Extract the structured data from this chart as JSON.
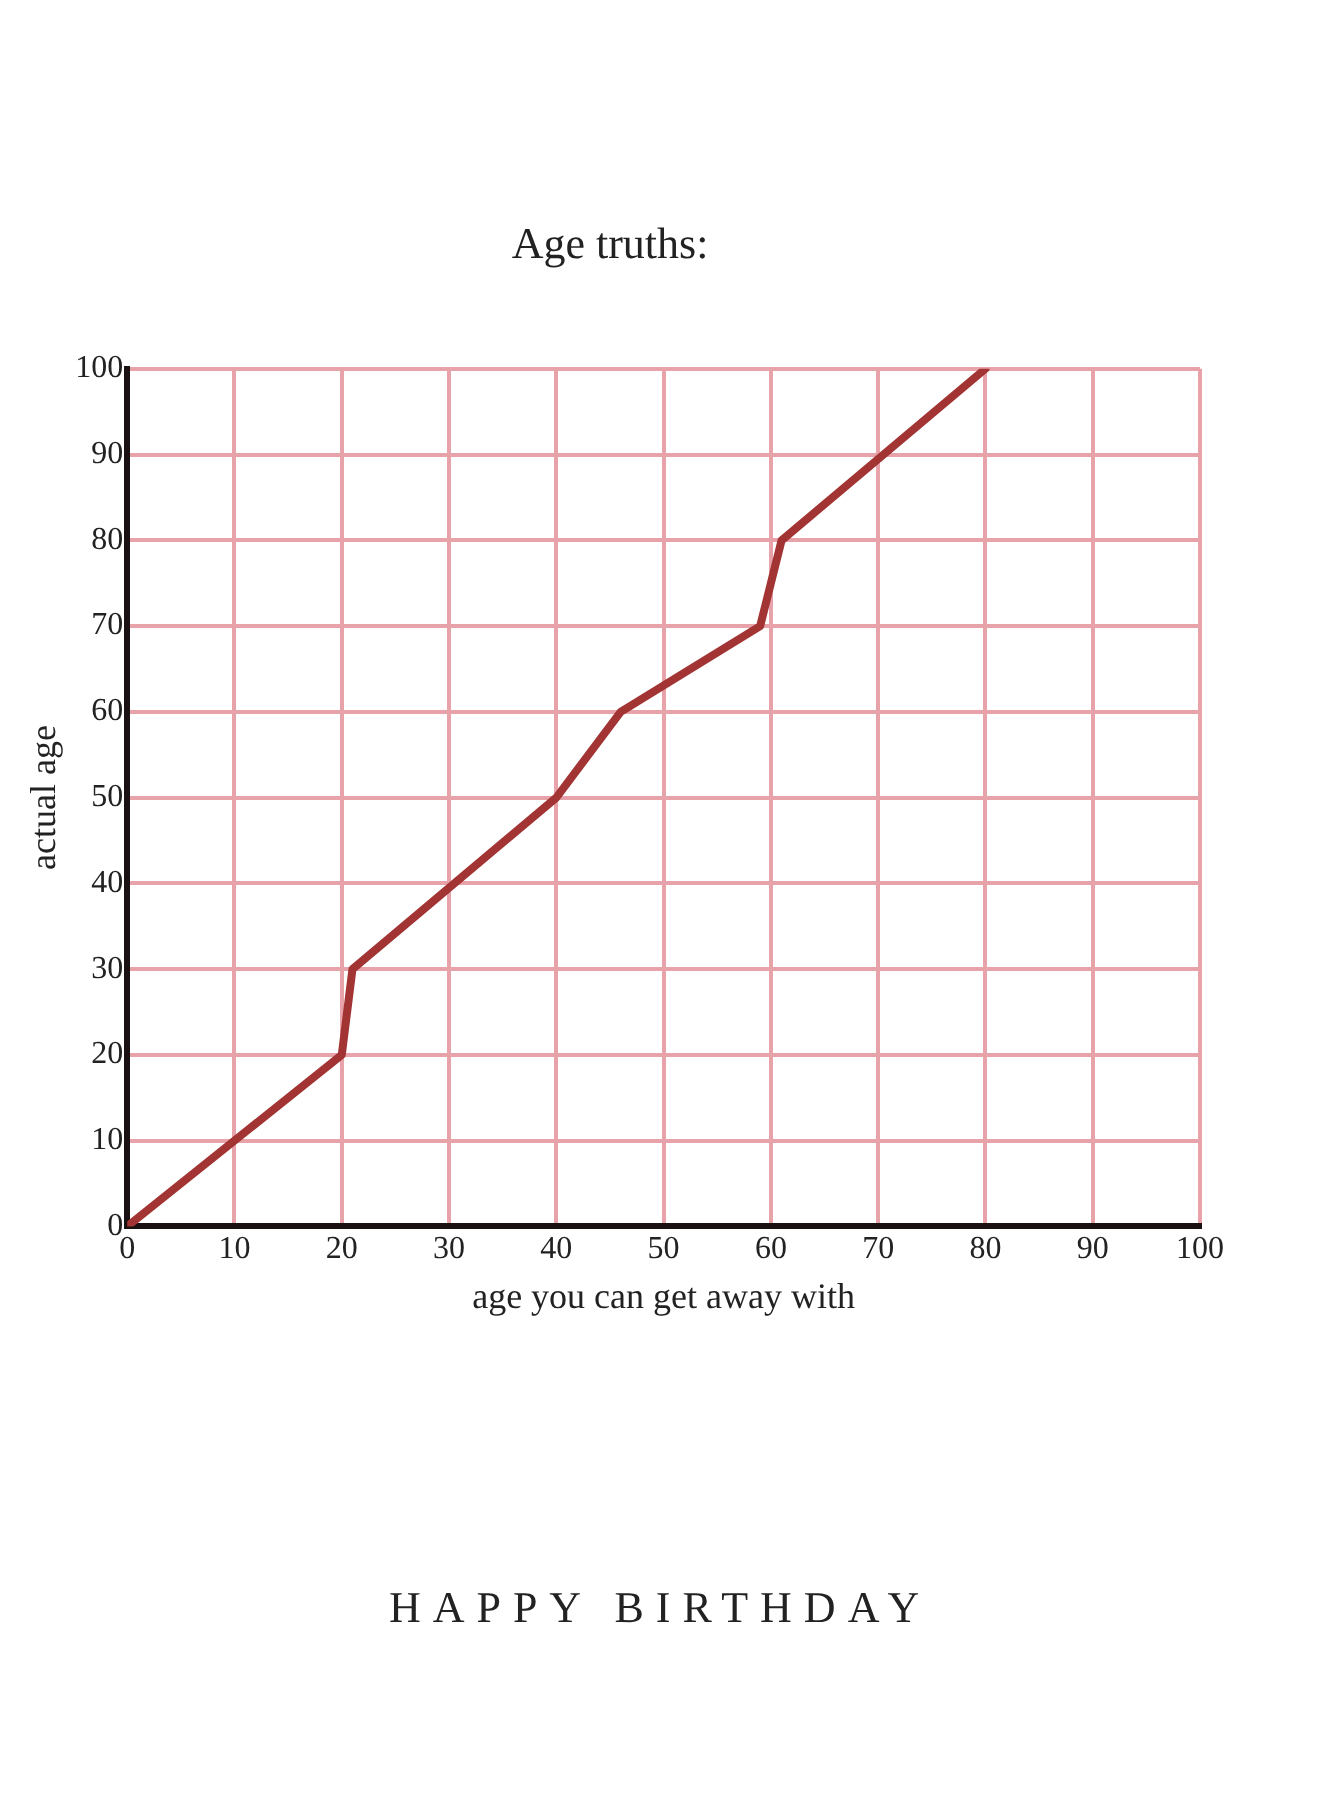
{
  "chart_data": {
    "type": "line",
    "title": "Age truths:",
    "xlabel": "age you can get away with",
    "ylabel": "actual age",
    "x": [
      0,
      20,
      21,
      40,
      46,
      59,
      61,
      80
    ],
    "series": [
      {
        "color": "#a23434",
        "values": [
          0,
          20,
          30,
          50,
          60,
          70,
          80,
          100
        ]
      }
    ],
    "xlim": [
      0,
      100
    ],
    "xticks": [
      0,
      10,
      20,
      30,
      40,
      50,
      60,
      70,
      80,
      90,
      100
    ],
    "ylim": [
      0,
      100
    ],
    "yticks": [
      0,
      10,
      20,
      30,
      40,
      50,
      60,
      70,
      80,
      90,
      100
    ],
    "grid": true,
    "legend": false,
    "marker": "none",
    "line_style": "solid",
    "annotations": [
      "HAPPY BIRTHDAY"
    ]
  }
}
